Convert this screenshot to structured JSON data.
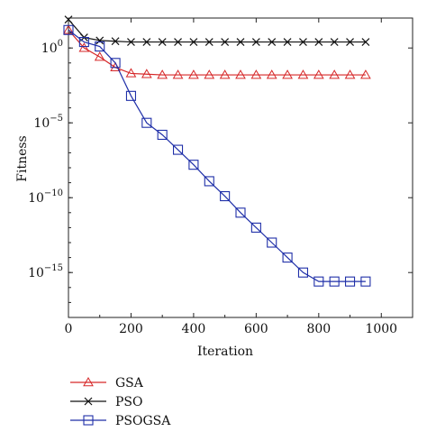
{
  "chart_data": {
    "type": "line",
    "xlabel": "Iteration",
    "ylabel": "Fitness",
    "y_scale": "log",
    "xlim": [
      0,
      1100
    ],
    "ylim_exponent": [
      -18,
      2
    ],
    "x_ticks": [
      0,
      200,
      400,
      600,
      800,
      1000
    ],
    "y_ticks": [
      {
        "exp": 0,
        "label_base": "10",
        "label_exp": "0"
      },
      {
        "exp": -5,
        "label_base": "10",
        "label_exp": "−5"
      },
      {
        "exp": -10,
        "label_base": "10",
        "label_exp": "−10"
      },
      {
        "exp": -15,
        "label_base": "10",
        "label_exp": "−15"
      }
    ],
    "grid": false,
    "legend_position": "below-left",
    "series": [
      {
        "name": "GSA",
        "color": "#d62728",
        "marker": "triangle",
        "x": [
          0,
          50,
          100,
          150,
          200,
          250,
          300,
          350,
          400,
          450,
          500,
          550,
          600,
          650,
          700,
          750,
          800,
          850,
          900,
          950
        ],
        "log10_y": [
          1.2,
          0.0,
          -0.6,
          -1.3,
          -1.7,
          -1.75,
          -1.8,
          -1.8,
          -1.8,
          -1.8,
          -1.8,
          -1.8,
          -1.8,
          -1.8,
          -1.8,
          -1.8,
          -1.8,
          -1.8,
          -1.8,
          -1.8
        ]
      },
      {
        "name": "PSO",
        "color": "#111111",
        "marker": "x",
        "x": [
          0,
          50,
          100,
          150,
          200,
          250,
          300,
          350,
          400,
          450,
          500,
          550,
          600,
          650,
          700,
          750,
          800,
          850,
          900,
          950
        ],
        "log10_y": [
          1.9,
          0.7,
          0.5,
          0.45,
          0.4,
          0.4,
          0.4,
          0.4,
          0.4,
          0.4,
          0.4,
          0.4,
          0.4,
          0.4,
          0.4,
          0.4,
          0.4,
          0.4,
          0.4,
          0.4
        ]
      },
      {
        "name": "PSOGSA",
        "color": "#1f2fa8",
        "marker": "square",
        "x": [
          0,
          50,
          100,
          150,
          200,
          250,
          300,
          350,
          400,
          450,
          500,
          550,
          600,
          650,
          700,
          750,
          800,
          850,
          900,
          950
        ],
        "log10_y": [
          1.2,
          0.4,
          0.1,
          -1.0,
          -3.2,
          -5.0,
          -5.8,
          -6.8,
          -7.8,
          -8.9,
          -9.9,
          -11.0,
          -12.0,
          -13.0,
          -14.0,
          -15.0,
          -15.6,
          -15.6,
          -15.6,
          -15.6
        ]
      }
    ]
  }
}
